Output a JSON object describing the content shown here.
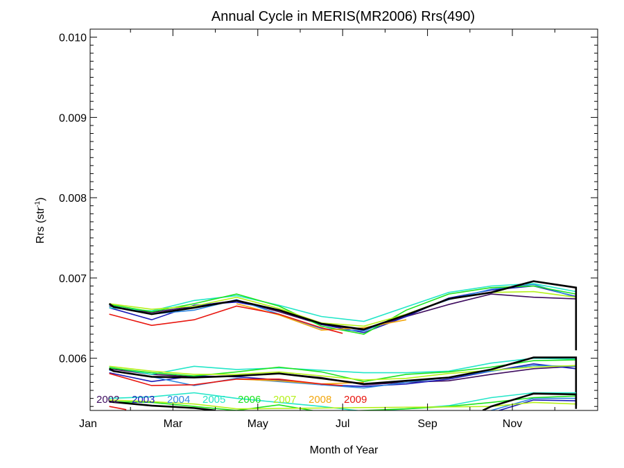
{
  "chart_data": {
    "type": "line",
    "title": "Annual Cycle in MERIS(MR2006) Rrs(490)",
    "xlabel": "Month of Year",
    "ylabel_main": "Rrs (str",
    "ylabel_sup": "-1",
    "ylabel_close": ")",
    "xlim": [
      1,
      13
    ],
    "ylim": [
      0.00535,
      0.0101
    ],
    "x_ticks": [
      {
        "value": 1,
        "label": "Jan"
      },
      {
        "value": 3,
        "label": "Mar"
      },
      {
        "value": 5,
        "label": "May"
      },
      {
        "value": 7,
        "label": "Jul"
      },
      {
        "value": 9,
        "label": "Sep"
      },
      {
        "value": 11,
        "label": "Nov"
      }
    ],
    "y_ticks": [
      {
        "value": 0.006,
        "label": "0.006"
      },
      {
        "value": 0.007,
        "label": "0.007"
      },
      {
        "value": 0.008,
        "label": "0.008"
      },
      {
        "value": 0.009,
        "label": "0.009"
      },
      {
        "value": 0.01,
        "label": "0.010"
      }
    ],
    "legend_position": "bottom-left",
    "legend": [
      {
        "label": "2002",
        "color": "#3d0a5e"
      },
      {
        "label": "2003",
        "color": "#1a1ab8"
      },
      {
        "label": "2004",
        "color": "#2f86e0"
      },
      {
        "label": "2005",
        "color": "#22e6c8"
      },
      {
        "label": "2006",
        "color": "#1de31d"
      },
      {
        "label": "2007",
        "color": "#b5f01a"
      },
      {
        "label": "2008",
        "color": "#f2a60c"
      },
      {
        "label": "2009",
        "color": "#e8150e"
      }
    ],
    "series": [
      {
        "group": "upper",
        "color": "#3d0a5e",
        "x": [
          1.5,
          2.5,
          3.5,
          4.5,
          5.5,
          6.5,
          7.5,
          8.5,
          9.5,
          10.5,
          11.5,
          12.5
        ],
        "y": [
          0.00665,
          0.00657,
          0.00665,
          0.00672,
          0.00658,
          0.00642,
          0.00635,
          0.00652,
          0.00667,
          0.0068,
          0.00676,
          0.00674
        ]
      },
      {
        "group": "upper",
        "color": "#1a1ab8",
        "x": [
          1.5,
          2.5,
          3.5,
          4.5,
          5.5,
          6.5,
          7.5,
          8.5,
          9.5,
          10.5,
          11.5,
          12.5
        ],
        "y": [
          0.00663,
          0.00648,
          0.00666,
          0.0067,
          0.0066,
          0.00642,
          0.00632,
          0.00652,
          0.00675,
          0.00685,
          0.0069,
          0.00677
        ]
      },
      {
        "group": "upper",
        "color": "#2f86e0",
        "x": [
          1.5,
          2.5,
          3.5,
          4.5,
          5.5,
          6.5,
          7.5,
          8.5,
          9.5,
          10.5,
          11.5,
          12.5
        ],
        "y": [
          0.00666,
          0.00655,
          0.0066,
          0.00673,
          0.00655,
          0.00637,
          0.00634,
          0.00655,
          0.00673,
          0.00686,
          0.00692,
          0.00676
        ]
      },
      {
        "group": "upper",
        "color": "#22e6c8",
        "x": [
          1.5,
          2.5,
          3.5,
          4.5,
          5.5,
          6.5,
          7.5,
          8.5,
          9.5,
          10.5,
          11.5,
          12.5
        ],
        "y": [
          0.00663,
          0.00659,
          0.00672,
          0.00678,
          0.00666,
          0.00652,
          0.00646,
          0.00664,
          0.00682,
          0.0069,
          0.00693,
          0.00683
        ]
      },
      {
        "group": "upper",
        "color": "#1de31d",
        "x": [
          1.5,
          2.5,
          3.5,
          4.5,
          5.5,
          6.5,
          7.5,
          8.5,
          9.5,
          10.5,
          11.5,
          12.5
        ],
        "y": [
          0.00667,
          0.00658,
          0.00668,
          0.0068,
          0.00665,
          0.0064,
          0.0063,
          0.0066,
          0.0068,
          0.00688,
          0.0069,
          0.0068
        ]
      },
      {
        "group": "upper",
        "color": "#b5f01a",
        "x": [
          1.5,
          2.5,
          3.5,
          4.5,
          5.5,
          6.5,
          7.5,
          8.5,
          9.5,
          10.5,
          11.5,
          12.5
        ],
        "y": [
          0.00668,
          0.00661,
          0.00665,
          0.00676,
          0.00662,
          0.00644,
          0.0064,
          0.00655,
          0.00674,
          0.00682,
          0.00683,
          0.00676
        ]
      },
      {
        "group": "upper",
        "color": "#f2a60c",
        "x": [
          4.5,
          5.5,
          6.5,
          7.5,
          8.5
        ],
        "y": [
          0.00668,
          0.00654,
          0.00635,
          0.00638,
          0.00648
        ]
      },
      {
        "group": "upper",
        "color": "#e8150e",
        "x": [
          1.5,
          2.5,
          3.5,
          4.5,
          5.5,
          6.5,
          7.0
        ],
        "y": [
          0.00655,
          0.00641,
          0.00648,
          0.00665,
          0.00655,
          0.00638,
          0.00631
        ]
      },
      {
        "group": "upper",
        "color": "#000000",
        "bold": true,
        "x": [
          1.5,
          1.6,
          2.5,
          3.5,
          4.5,
          5.5,
          6.5,
          7.5,
          8.5,
          9.5,
          10.5,
          11.5,
          12.5,
          12.5
        ],
        "y": [
          0.00668,
          0.00664,
          0.00655,
          0.00663,
          0.00672,
          0.0066,
          0.00643,
          0.00636,
          0.00654,
          0.00674,
          0.00682,
          0.00696,
          0.00688,
          0.0061
        ]
      },
      {
        "group": "middle",
        "color": "#3d0a5e",
        "x": [
          1.5,
          2.5,
          3.5,
          4.5,
          5.5,
          6.5,
          7.5,
          8.5,
          9.5,
          10.5,
          11.5,
          12.5
        ],
        "y": [
          0.00587,
          0.0058,
          0.00577,
          0.00578,
          0.00581,
          0.00576,
          0.00567,
          0.0057,
          0.00572,
          0.0058,
          0.00587,
          0.0059
        ]
      },
      {
        "group": "middle",
        "color": "#1a1ab8",
        "x": [
          1.5,
          2.5,
          3.5,
          4.5,
          5.5,
          6.5,
          7.5,
          8.5,
          9.5,
          10.5,
          11.5,
          12.5
        ],
        "y": [
          0.00582,
          0.00571,
          0.00578,
          0.00577,
          0.00573,
          0.00567,
          0.00565,
          0.00568,
          0.00574,
          0.00584,
          0.00593,
          0.00587
        ]
      },
      {
        "group": "middle",
        "color": "#2f86e0",
        "x": [
          1.5,
          2.5,
          3.5,
          4.5,
          5.5,
          6.5,
          7.5,
          8.5,
          9.5,
          10.5,
          11.5,
          12.5
        ],
        "y": [
          0.00585,
          0.00577,
          0.00566,
          0.00575,
          0.00571,
          0.00567,
          0.00563,
          0.0057,
          0.00576,
          0.00584,
          0.00591,
          0.0059
        ]
      },
      {
        "group": "middle",
        "color": "#22e6c8",
        "x": [
          1.5,
          2.5,
          3.5,
          4.5,
          5.5,
          6.5,
          7.5,
          8.5,
          9.5,
          10.5,
          11.5,
          12.5
        ],
        "y": [
          0.00589,
          0.0058,
          0.0059,
          0.00586,
          0.00588,
          0.00585,
          0.00582,
          0.00582,
          0.00584,
          0.00594,
          0.006,
          0.00599
        ]
      },
      {
        "group": "middle",
        "color": "#1de31d",
        "x": [
          1.5,
          2.5,
          3.5,
          4.5,
          5.5,
          6.5,
          7.5,
          8.5,
          9.5,
          10.5,
          11.5,
          12.5
        ],
        "y": [
          0.00588,
          0.00582,
          0.00578,
          0.00583,
          0.00589,
          0.00583,
          0.00571,
          0.0058,
          0.00583,
          0.00589,
          0.00597,
          0.00598
        ]
      },
      {
        "group": "middle",
        "color": "#b5f01a",
        "x": [
          1.5,
          2.5,
          3.5,
          4.5,
          5.5,
          6.5,
          7.5,
          8.5,
          9.5,
          10.5,
          11.5,
          12.5
        ],
        "y": [
          0.0059,
          0.00584,
          0.0058,
          0.0058,
          0.00583,
          0.00578,
          0.00573,
          0.00575,
          0.00581,
          0.00585,
          0.00589,
          0.00591
        ]
      },
      {
        "group": "middle",
        "color": "#f2a60c",
        "x": [
          4.5,
          5.5,
          6.5,
          7.5
        ],
        "y": [
          0.00574,
          0.00572,
          0.00568,
          0.0057
        ]
      },
      {
        "group": "middle",
        "color": "#e8150e",
        "x": [
          1.5,
          2.5,
          3.5,
          4.5,
          5.5,
          6.5,
          7.0
        ],
        "y": [
          0.00581,
          0.00566,
          0.00567,
          0.00574,
          0.00574,
          0.00568,
          0.00566
        ]
      },
      {
        "group": "middle",
        "color": "#000000",
        "bold": true,
        "x": [
          1.5,
          1.6,
          2.5,
          3.5,
          4.5,
          5.5,
          6.5,
          7.5,
          8.5,
          9.5,
          10.5,
          11.5,
          12.5,
          12.5
        ],
        "y": [
          0.00587,
          0.00584,
          0.00577,
          0.00576,
          0.00578,
          0.00581,
          0.00575,
          0.00568,
          0.00572,
          0.00576,
          0.00586,
          0.00601,
          0.00601,
          0.00541
        ]
      },
      {
        "group": "lower",
        "color": "#1a1ab8",
        "x": [
          10.5,
          11.5,
          12.5
        ],
        "y": [
          0.00532,
          0.00548,
          0.00547
        ]
      },
      {
        "group": "lower",
        "color": "#2f86e0",
        "x": [
          10.5,
          11.5,
          12.5
        ],
        "y": [
          0.00535,
          0.0055,
          0.0055
        ]
      },
      {
        "group": "lower",
        "color": "#22e6c8",
        "x": [
          1.5,
          2.5,
          3.5,
          4.5,
          5.5,
          6.5,
          7.5,
          8.5,
          9.5,
          10.5,
          11.5,
          12.5
        ],
        "y": [
          0.0055,
          0.00552,
          0.00557,
          0.0055,
          0.00545,
          0.0054,
          0.00534,
          0.00537,
          0.00541,
          0.00551,
          0.00557,
          0.00557
        ]
      },
      {
        "group": "lower",
        "color": "#1de31d",
        "x": [
          1.5,
          2.5,
          3.5,
          4.5,
          5.5,
          6.5,
          8.5,
          9.5,
          10.5,
          11.5,
          12.5
        ],
        "y": [
          0.00546,
          0.00545,
          0.0054,
          0.00535,
          0.00542,
          0.00533,
          0.00537,
          0.0054,
          0.00545,
          0.00551,
          0.00553
        ]
      },
      {
        "group": "lower",
        "color": "#b5f01a",
        "x": [
          1.5,
          2.5,
          3.5,
          4.5,
          10.5,
          11.5,
          12.5
        ],
        "y": [
          0.00548,
          0.00546,
          0.00543,
          0.00537,
          0.0054,
          0.00545,
          0.00543
        ]
      },
      {
        "group": "lower",
        "color": "#e8150e",
        "x": [
          1.5,
          1.9
        ],
        "y": [
          0.0054,
          0.00536
        ]
      },
      {
        "group": "lower",
        "color": "#000000",
        "bold": true,
        "x": [
          1.5,
          2.5,
          3.5,
          4.0
        ],
        "y": [
          0.00546,
          0.00541,
          0.00538,
          0.00535
        ]
      },
      {
        "group": "lower",
        "color": "#000000",
        "bold": true,
        "x": [
          10.3,
          10.5,
          11.5,
          12.5,
          12.5
        ],
        "y": [
          0.00535,
          0.0054,
          0.00556,
          0.00555,
          0.00537
        ]
      }
    ]
  }
}
